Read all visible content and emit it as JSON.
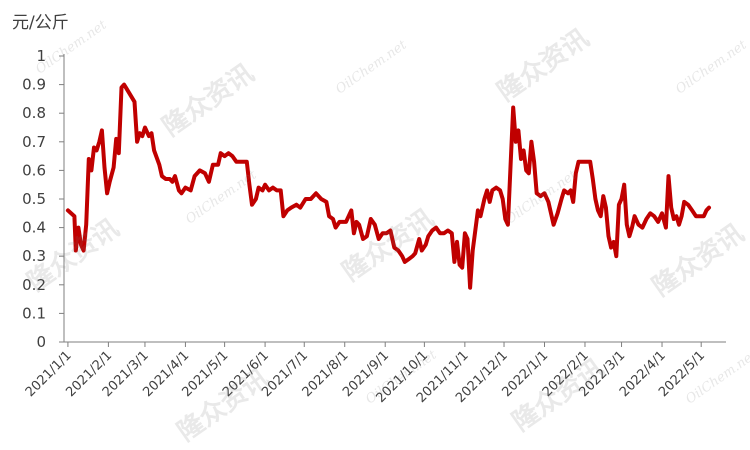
{
  "chart_data": {
    "type": "line",
    "ylabel": "元/公斤",
    "ylim": [
      0,
      1
    ],
    "yticks": [
      "0",
      "0.1",
      "0.2",
      "0.3",
      "0.4",
      "0.5",
      "0.6",
      "0.7",
      "0.8",
      "0.9",
      "1"
    ],
    "xlim": [
      "2020-12-29",
      "2022-05-20"
    ],
    "xticks": [
      "2021/1/1",
      "2021/2/1",
      "2021/3/1",
      "2021/4/1",
      "2021/5/1",
      "2021/6/1",
      "2021/7/1",
      "2021/8/1",
      "2021/9/1",
      "2021/10/1",
      "2021/11/1",
      "2021/12/1",
      "2022/1/1",
      "2022/2/1",
      "2022/3/1",
      "2022/4/1",
      "2022/5/1"
    ],
    "grid": false,
    "legend": "none",
    "series": [
      {
        "color": "#C00000",
        "points": [
          [
            "2021-01-01",
            0.46
          ],
          [
            "2021-01-06",
            0.44
          ],
          [
            "2021-01-07",
            0.32
          ],
          [
            "2021-01-09",
            0.4
          ],
          [
            "2021-01-11",
            0.34
          ],
          [
            "2021-01-13",
            0.32
          ],
          [
            "2021-01-15",
            0.41
          ],
          [
            "2021-01-17",
            0.64
          ],
          [
            "2021-01-19",
            0.6
          ],
          [
            "2021-01-21",
            0.68
          ],
          [
            "2021-01-23",
            0.67
          ],
          [
            "2021-01-25",
            0.7
          ],
          [
            "2021-01-27",
            0.74
          ],
          [
            "2021-01-29",
            0.61
          ],
          [
            "2021-01-31",
            0.52
          ],
          [
            "2021-02-02",
            0.56
          ],
          [
            "2021-02-05",
            0.61
          ],
          [
            "2021-02-07",
            0.71
          ],
          [
            "2021-02-09",
            0.66
          ],
          [
            "2021-02-11",
            0.89
          ],
          [
            "2021-02-13",
            0.9
          ],
          [
            "2021-02-17",
            0.87
          ],
          [
            "2021-02-21",
            0.84
          ],
          [
            "2021-02-23",
            0.7
          ],
          [
            "2021-02-25",
            0.73
          ],
          [
            "2021-02-27",
            0.72
          ],
          [
            "2021-03-01",
            0.75
          ],
          [
            "2021-03-04",
            0.72
          ],
          [
            "2021-03-06",
            0.73
          ],
          [
            "2021-03-08",
            0.67
          ],
          [
            "2021-03-12",
            0.62
          ],
          [
            "2021-03-14",
            0.58
          ],
          [
            "2021-03-17",
            0.57
          ],
          [
            "2021-03-20",
            0.57
          ],
          [
            "2021-03-22",
            0.56
          ],
          [
            "2021-03-24",
            0.58
          ],
          [
            "2021-03-27",
            0.53
          ],
          [
            "2021-03-29",
            0.52
          ],
          [
            "2021-04-01",
            0.54
          ],
          [
            "2021-04-05",
            0.53
          ],
          [
            "2021-04-08",
            0.58
          ],
          [
            "2021-04-12",
            0.6
          ],
          [
            "2021-04-16",
            0.59
          ],
          [
            "2021-04-19",
            0.56
          ],
          [
            "2021-04-22",
            0.62
          ],
          [
            "2021-04-26",
            0.62
          ],
          [
            "2021-04-28",
            0.66
          ],
          [
            "2021-05-01",
            0.65
          ],
          [
            "2021-05-04",
            0.66
          ],
          [
            "2021-05-07",
            0.65
          ],
          [
            "2021-05-10",
            0.63
          ],
          [
            "2021-05-14",
            0.63
          ],
          [
            "2021-05-18",
            0.63
          ],
          [
            "2021-05-20",
            0.55
          ],
          [
            "2021-05-22",
            0.48
          ],
          [
            "2021-05-25",
            0.5
          ],
          [
            "2021-05-27",
            0.54
          ],
          [
            "2021-05-30",
            0.53
          ],
          [
            "2021-06-01",
            0.55
          ],
          [
            "2021-06-04",
            0.53
          ],
          [
            "2021-06-07",
            0.54
          ],
          [
            "2021-06-10",
            0.53
          ],
          [
            "2021-06-13",
            0.53
          ],
          [
            "2021-06-15",
            0.44
          ],
          [
            "2021-06-18",
            0.46
          ],
          [
            "2021-06-21",
            0.47
          ],
          [
            "2021-06-25",
            0.48
          ],
          [
            "2021-06-28",
            0.47
          ],
          [
            "2021-07-02",
            0.5
          ],
          [
            "2021-07-06",
            0.5
          ],
          [
            "2021-07-10",
            0.52
          ],
          [
            "2021-07-14",
            0.5
          ],
          [
            "2021-07-18",
            0.49
          ],
          [
            "2021-07-20",
            0.44
          ],
          [
            "2021-07-23",
            0.43
          ],
          [
            "2021-07-25",
            0.4
          ],
          [
            "2021-07-28",
            0.42
          ],
          [
            "2021-08-02",
            0.42
          ],
          [
            "2021-08-06",
            0.46
          ],
          [
            "2021-08-08",
            0.38
          ],
          [
            "2021-08-10",
            0.42
          ],
          [
            "2021-08-12",
            0.41
          ],
          [
            "2021-08-15",
            0.36
          ],
          [
            "2021-08-18",
            0.37
          ],
          [
            "2021-08-21",
            0.43
          ],
          [
            "2021-08-24",
            0.41
          ],
          [
            "2021-08-27",
            0.36
          ],
          [
            "2021-08-30",
            0.38
          ],
          [
            "2021-09-02",
            0.38
          ],
          [
            "2021-09-05",
            0.39
          ],
          [
            "2021-09-08",
            0.33
          ],
          [
            "2021-09-11",
            0.32
          ],
          [
            "2021-09-14",
            0.3
          ],
          [
            "2021-09-16",
            0.28
          ],
          [
            "2021-09-19",
            0.29
          ],
          [
            "2021-09-22",
            0.3
          ],
          [
            "2021-09-24",
            0.31
          ],
          [
            "2021-09-27",
            0.36
          ],
          [
            "2021-09-29",
            0.32
          ],
          [
            "2021-10-02",
            0.34
          ],
          [
            "2021-10-04",
            0.37
          ],
          [
            "2021-10-07",
            0.39
          ],
          [
            "2021-10-10",
            0.4
          ],
          [
            "2021-10-13",
            0.38
          ],
          [
            "2021-10-16",
            0.38
          ],
          [
            "2021-10-19",
            0.39
          ],
          [
            "2021-10-22",
            0.38
          ],
          [
            "2021-10-24",
            0.28
          ],
          [
            "2021-10-26",
            0.35
          ],
          [
            "2021-10-28",
            0.27
          ],
          [
            "2021-10-30",
            0.26
          ],
          [
            "2021-11-01",
            0.38
          ],
          [
            "2021-11-03",
            0.36
          ],
          [
            "2021-11-05",
            0.19
          ],
          [
            "2021-11-07",
            0.32
          ],
          [
            "2021-11-09",
            0.39
          ],
          [
            "2021-11-11",
            0.46
          ],
          [
            "2021-11-13",
            0.44
          ],
          [
            "2021-11-16",
            0.5
          ],
          [
            "2021-11-18",
            0.53
          ],
          [
            "2021-11-20",
            0.49
          ],
          [
            "2021-11-22",
            0.53
          ],
          [
            "2021-11-25",
            0.54
          ],
          [
            "2021-11-28",
            0.53
          ],
          [
            "2021-11-30",
            0.5
          ],
          [
            "2021-12-02",
            0.43
          ],
          [
            "2021-12-04",
            0.41
          ],
          [
            "2021-12-06",
            0.62
          ],
          [
            "2021-12-08",
            0.82
          ],
          [
            "2021-12-10",
            0.7
          ],
          [
            "2021-12-12",
            0.74
          ],
          [
            "2021-12-14",
            0.64
          ],
          [
            "2021-12-16",
            0.67
          ],
          [
            "2021-12-18",
            0.6
          ],
          [
            "2021-12-20",
            0.59
          ],
          [
            "2021-12-22",
            0.7
          ],
          [
            "2021-12-24",
            0.63
          ],
          [
            "2021-12-26",
            0.52
          ],
          [
            "2021-12-29",
            0.51
          ],
          [
            "2022-01-01",
            0.52
          ],
          [
            "2022-01-04",
            0.49
          ],
          [
            "2022-01-06",
            0.45
          ],
          [
            "2022-01-08",
            0.41
          ],
          [
            "2022-01-11",
            0.45
          ],
          [
            "2022-01-14",
            0.5
          ],
          [
            "2022-01-16",
            0.53
          ],
          [
            "2022-01-19",
            0.52
          ],
          [
            "2022-01-21",
            0.53
          ],
          [
            "2022-01-23",
            0.49
          ],
          [
            "2022-01-25",
            0.59
          ],
          [
            "2022-01-27",
            0.63
          ],
          [
            "2022-02-01",
            0.63
          ],
          [
            "2022-02-05",
            0.63
          ],
          [
            "2022-02-07",
            0.57
          ],
          [
            "2022-02-09",
            0.5
          ],
          [
            "2022-02-11",
            0.46
          ],
          [
            "2022-02-13",
            0.44
          ],
          [
            "2022-02-15",
            0.51
          ],
          [
            "2022-02-17",
            0.47
          ],
          [
            "2022-02-19",
            0.37
          ],
          [
            "2022-02-21",
            0.33
          ],
          [
            "2022-02-23",
            0.35
          ],
          [
            "2022-02-25",
            0.3
          ],
          [
            "2022-02-27",
            0.48
          ],
          [
            "2022-03-01",
            0.5
          ],
          [
            "2022-03-03",
            0.55
          ],
          [
            "2022-03-05",
            0.41
          ],
          [
            "2022-03-07",
            0.37
          ],
          [
            "2022-03-09",
            0.4
          ],
          [
            "2022-03-11",
            0.44
          ],
          [
            "2022-03-14",
            0.41
          ],
          [
            "2022-03-17",
            0.4
          ],
          [
            "2022-03-20",
            0.43
          ],
          [
            "2022-03-23",
            0.45
          ],
          [
            "2022-03-26",
            0.44
          ],
          [
            "2022-03-29",
            0.42
          ],
          [
            "2022-04-01",
            0.45
          ],
          [
            "2022-04-04",
            0.4
          ],
          [
            "2022-04-06",
            0.58
          ],
          [
            "2022-04-08",
            0.47
          ],
          [
            "2022-04-10",
            0.43
          ],
          [
            "2022-04-12",
            0.44
          ],
          [
            "2022-04-14",
            0.41
          ],
          [
            "2022-04-16",
            0.44
          ],
          [
            "2022-04-18",
            0.49
          ],
          [
            "2022-04-21",
            0.48
          ],
          [
            "2022-04-24",
            0.46
          ],
          [
            "2022-04-27",
            0.44
          ],
          [
            "2022-04-30",
            0.44
          ],
          [
            "2022-05-03",
            0.44
          ],
          [
            "2022-05-05",
            0.46
          ],
          [
            "2022-05-07",
            0.47
          ]
        ]
      }
    ]
  },
  "watermarks": {
    "logo": "隆众资讯",
    "url": "OilChem.net"
  }
}
